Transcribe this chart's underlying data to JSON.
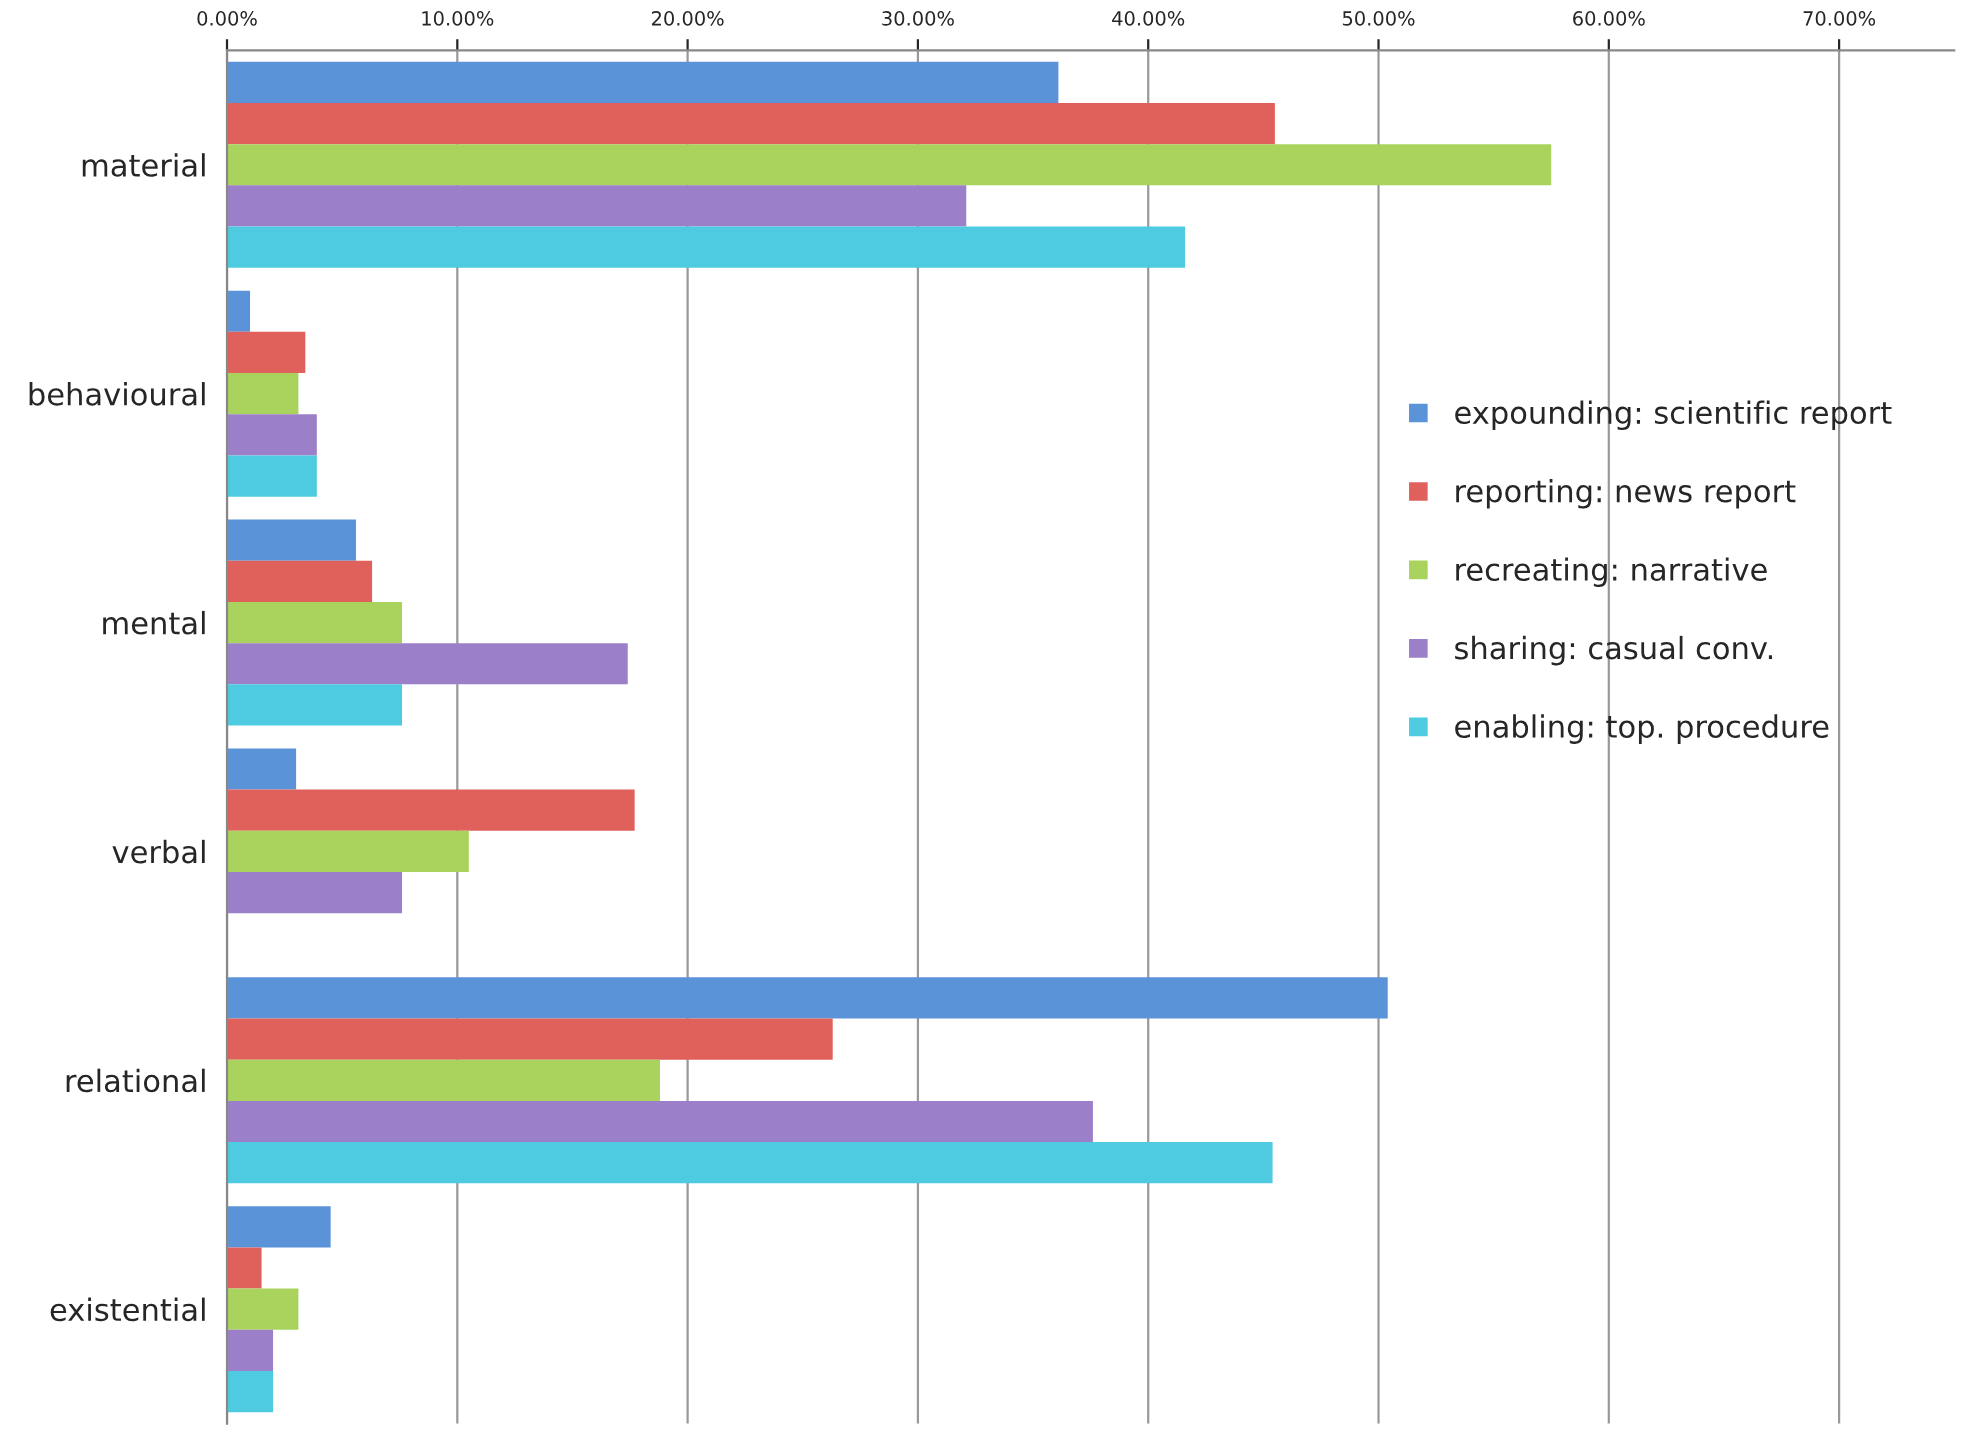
{
  "chart_data": {
    "type": "bar",
    "orientation": "horizontal",
    "categories": [
      "material",
      "behavioural",
      "mental",
      "verbal",
      "relational",
      "existential"
    ],
    "series": [
      {
        "name": "expounding: scientific report",
        "color": "#5b93d9",
        "values": [
          36.1,
          1.0,
          5.6,
          3.0,
          50.4,
          4.5
        ]
      },
      {
        "name": "reporting: news report",
        "color": "#e0605c",
        "values": [
          45.5,
          3.4,
          6.3,
          17.7,
          26.3,
          1.5
        ]
      },
      {
        "name": "recreating: narrative",
        "color": "#a9d35c",
        "values": [
          57.5,
          3.1,
          7.6,
          10.5,
          18.8,
          3.1
        ]
      },
      {
        "name": "sharing: casual conv.",
        "color": "#9b7fc9",
        "values": [
          32.1,
          3.9,
          17.4,
          7.6,
          37.6,
          2.0
        ]
      },
      {
        "name": "enabling: top. procedure",
        "color": "#4ecbe0",
        "values": [
          41.6,
          3.9,
          7.6,
          null,
          45.4,
          2.0
        ]
      }
    ],
    "xlim": [
      0,
      75
    ],
    "xticks": [
      {
        "value": 0,
        "label": "0.00%"
      },
      {
        "value": 10,
        "label": "10.00%"
      },
      {
        "value": 20,
        "label": "20.00%"
      },
      {
        "value": 30,
        "label": "30.00%"
      },
      {
        "value": 40,
        "label": "40.00%"
      },
      {
        "value": 50,
        "label": "50.00%"
      },
      {
        "value": 60,
        "label": "60.00%"
      },
      {
        "value": 70,
        "label": "70.00%"
      }
    ],
    "grid": "x",
    "legend": "right"
  }
}
